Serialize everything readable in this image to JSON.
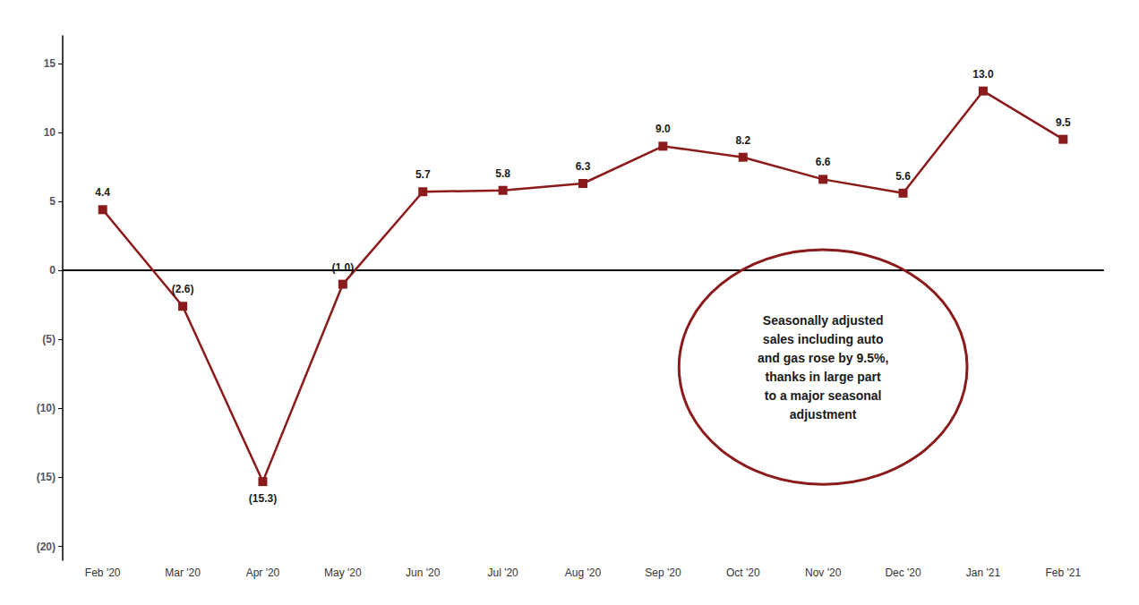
{
  "chart_data": {
    "type": "line",
    "categories": [
      "Feb '20",
      "Mar '20",
      "Apr '20",
      "May '20",
      "Jun '20",
      "Jul '20",
      "Aug '20",
      "Sep '20",
      "Oct '20",
      "Nov '20",
      "Dec '20",
      "Jan '21",
      "Feb '21"
    ],
    "values": [
      4.4,
      -2.6,
      -15.3,
      -1.0,
      5.7,
      5.8,
      6.3,
      9.0,
      8.2,
      6.6,
      5.6,
      13.0,
      9.5
    ],
    "value_labels": [
      "4.4",
      "(2.6)",
      "(15.3)",
      "(1.0)",
      "5.7",
      "5.8",
      "6.3",
      "9.0",
      "8.2",
      "6.6",
      "5.6",
      "13.0",
      "9.5"
    ],
    "data_labels": true,
    "color": "#8B1A1A",
    "marker": "square",
    "ylim": [
      -21,
      17
    ],
    "yticks": [
      15,
      10,
      5,
      0,
      {
        "value": -5,
        "label": "(5)"
      },
      {
        "value": -10,
        "label": "(10)"
      },
      {
        "value": -15,
        "label": "(15)"
      },
      {
        "value": -20,
        "label": "(20)"
      }
    ],
    "grid": false,
    "annotation": "Seasonally adjusted\nsales including auto\nand gas rose by 9.5%,\nthanks in large part\nto a major seasonal\nadjustment"
  }
}
